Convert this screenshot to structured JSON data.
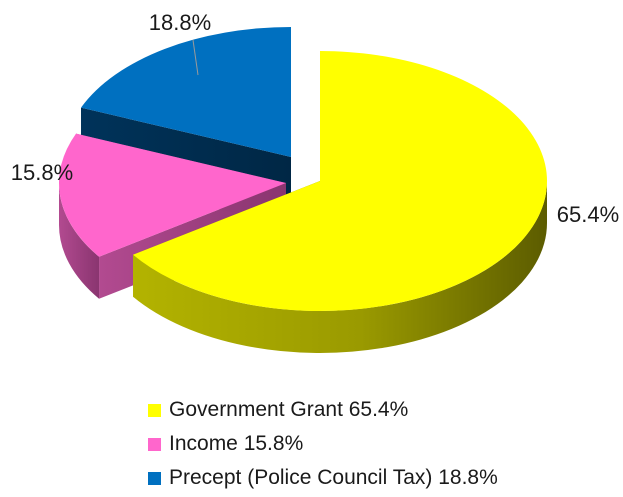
{
  "chart_data": {
    "type": "pie",
    "labels": [
      "Government Grant 65.4%",
      "Income 15.8%",
      "Precept (Police Council Tax) 18.8%"
    ],
    "values": [
      65.4,
      15.8,
      18.8
    ],
    "data_labels": [
      "65.4%",
      "15.8%",
      "18.8%"
    ],
    "colors": [
      "#ffff00",
      "#ff66cc",
      "#0070c0"
    ],
    "exploded": true,
    "three_d": true,
    "legend_position": "bottom"
  }
}
